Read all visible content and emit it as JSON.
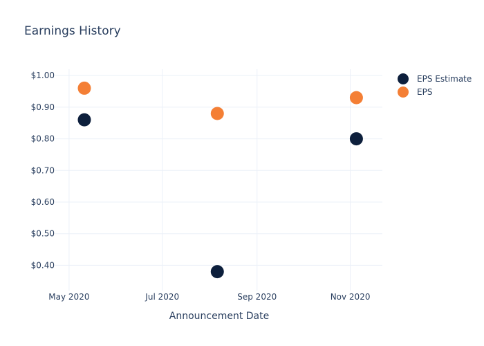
{
  "chart_data": {
    "type": "scatter",
    "title": "Earnings History",
    "xlabel": "Announcement Date",
    "ylabel": "",
    "x_ticks": [
      "May 2020",
      "Jul 2020",
      "Sep 2020",
      "Nov 2020"
    ],
    "x_tick_dates": [
      "2020-05-01",
      "2020-07-01",
      "2020-09-01",
      "2020-11-01"
    ],
    "xlim": [
      "2020-04-22",
      "2020-11-22"
    ],
    "y_ticks": [
      "$0.40",
      "$0.50",
      "$0.60",
      "$0.70",
      "$0.80",
      "$0.90",
      "$1.00"
    ],
    "y_tick_values": [
      0.4,
      0.5,
      0.6,
      0.7,
      0.8,
      0.9,
      1.0
    ],
    "ylim": [
      0.32,
      1.02
    ],
    "grid": true,
    "legend_position": "top-right",
    "series": [
      {
        "name": "EPS Estimate",
        "color": "#0d1f3c",
        "points": [
          {
            "x": "2020-05-11",
            "y": 0.86
          },
          {
            "x": "2020-08-06",
            "y": 0.38
          },
          {
            "x": "2020-11-05",
            "y": 0.8
          }
        ]
      },
      {
        "name": "EPS",
        "color": "#f47f35",
        "points": [
          {
            "x": "2020-05-11",
            "y": 0.96
          },
          {
            "x": "2020-08-06",
            "y": 0.88
          },
          {
            "x": "2020-11-05",
            "y": 0.93
          }
        ]
      }
    ]
  }
}
